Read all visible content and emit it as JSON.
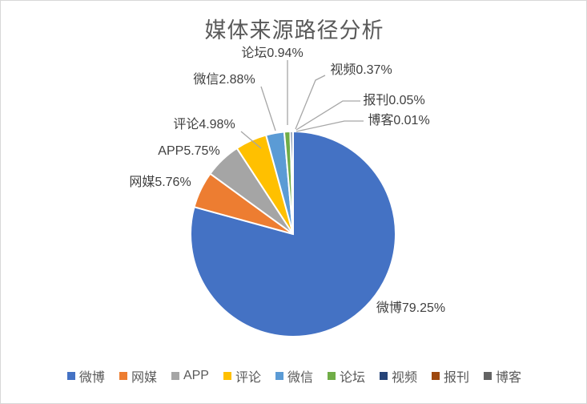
{
  "window": {
    "background": "#FFFFFF",
    "border_color": "#D8D8D8"
  },
  "chart_data": {
    "type": "pie",
    "title": "媒体来源路径分析",
    "categories": [
      "微博",
      "网媒",
      "APP",
      "评论",
      "微信",
      "论坛",
      "视频",
      "报刊",
      "博客"
    ],
    "values": [
      79.25,
      5.76,
      5.75,
      4.98,
      2.88,
      0.94,
      0.37,
      0.05,
      0.01
    ],
    "unit": "%",
    "display_labels": [
      "微博79.25%",
      "网媒5.76%",
      "APP5.75%",
      "评论4.98%",
      "微信2.88%",
      "论坛0.94%",
      "视频0.37%",
      "报刊0.05%",
      "博客0.01%"
    ],
    "colors": [
      "#4472C4",
      "#ED7D31",
      "#A5A5A5",
      "#FFC000",
      "#5B9BD5",
      "#70AD47",
      "#264478",
      "#9E480E",
      "#636363"
    ],
    "slice_border_color": "#FFFFFF",
    "leader_line_color": "#A6A6A6",
    "title_color": "#595959",
    "label_color": "#404040",
    "legend_text_color": "#595959",
    "start_angle_deg": 0,
    "direction": "clockwise",
    "legend_position": "bottom",
    "grid": false
  }
}
